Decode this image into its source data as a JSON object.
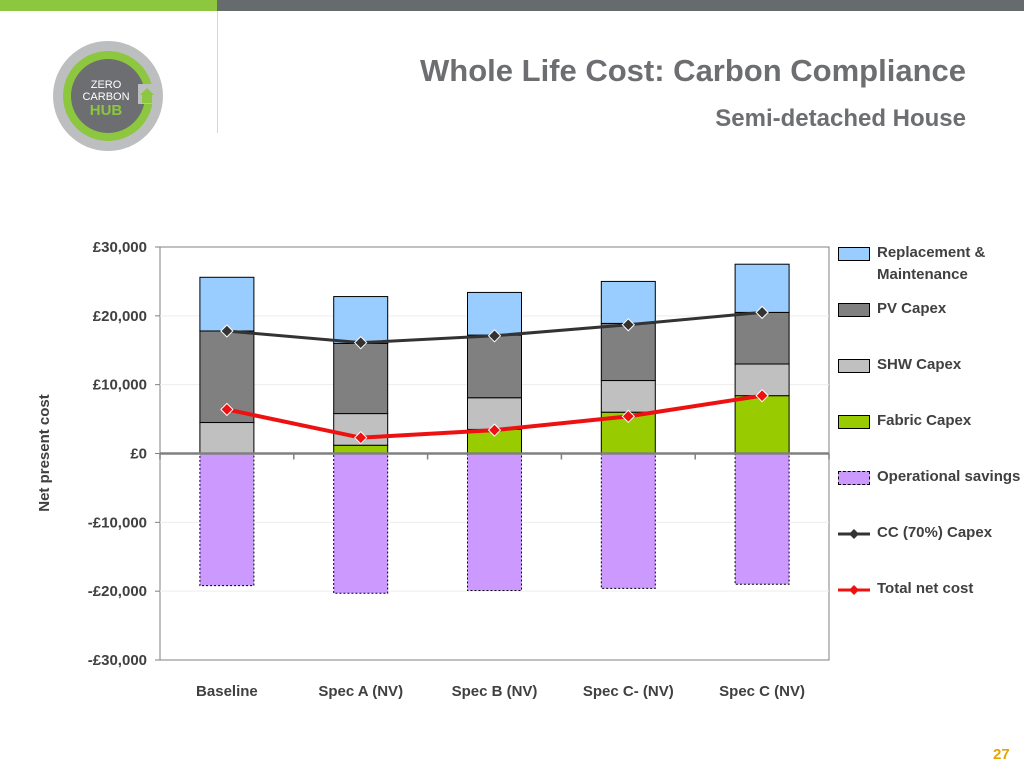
{
  "slide": {
    "title": "Whole Life Cost: Carbon Compliance",
    "subtitle": "Semi-detached House",
    "page_number": "27",
    "logo_text": [
      "ZERO",
      "CARBON",
      "HUB"
    ]
  },
  "colors": {
    "top_bar": "#666b6e",
    "top_bar_accent": "#8dc63f",
    "title": "#6d6e71",
    "replacement": "#99ccff",
    "pv": "#808080",
    "shw": "#c0c0c0",
    "fabric": "#99cc00",
    "operational": "#cc99ff",
    "cc_line": "#333333",
    "total_line": "#ee1111",
    "page_number": "#e6a400"
  },
  "chart_data": {
    "type": "bar",
    "stacked": true,
    "categories": [
      "Baseline",
      "Spec A (NV)",
      "Spec B (NV)",
      "Spec C- (NV)",
      "Spec C (NV)"
    ],
    "ylabel": "Net present cost",
    "xlabel": "",
    "ylim": [
      -30000,
      30000
    ],
    "yticks": [
      30000,
      20000,
      10000,
      0,
      -10000,
      -20000,
      -30000
    ],
    "ytick_labels": [
      "£30,000",
      "£20,000",
      "£10,000",
      "£0",
      "-£10,000",
      "-£20,000",
      "-£30,000"
    ],
    "grid": true,
    "legend_position": "right",
    "bar_series": [
      {
        "name": "Fabric Capex",
        "values": [
          0,
          1200,
          3500,
          6000,
          8400
        ],
        "color": "#99cc00"
      },
      {
        "name": "SHW Capex",
        "values": [
          4500,
          4600,
          4600,
          4600,
          4600
        ],
        "color": "#c0c0c0"
      },
      {
        "name": "PV Capex",
        "values": [
          13300,
          10200,
          9100,
          8300,
          7500
        ],
        "color": "#808080"
      },
      {
        "name": "Replacement & Maintenance",
        "values": [
          7800,
          6800,
          6200,
          6100,
          7000
        ],
        "color": "#99ccff"
      },
      {
        "name": "Operational savings",
        "values": [
          -19200,
          -20300,
          -19900,
          -19600,
          -19000
        ],
        "color": "#cc99ff"
      }
    ],
    "line_series": [
      {
        "name": "CC (70%) Capex",
        "values": [
          17800,
          16100,
          17100,
          18700,
          20500
        ],
        "color": "#333333",
        "marker": "diamond"
      },
      {
        "name": "Total net cost",
        "values": [
          6400,
          2300,
          3400,
          5400,
          8400
        ],
        "color": "#ee1111",
        "marker": "diamond"
      }
    ],
    "legend": [
      {
        "label": "Replacement & Maintenance",
        "kind": "bar",
        "color": "#99ccff"
      },
      {
        "label": "PV Capex",
        "kind": "bar",
        "color": "#808080"
      },
      {
        "label": "SHW Capex",
        "kind": "bar",
        "color": "#c0c0c0"
      },
      {
        "label": "Fabric Capex",
        "kind": "bar",
        "color": "#99cc00"
      },
      {
        "label": "Operational savings",
        "kind": "dashed-bar",
        "color": "#cc99ff"
      },
      {
        "label": "CC (70%) Capex",
        "kind": "line",
        "color": "#333333"
      },
      {
        "label": "Total net cost",
        "kind": "line",
        "color": "#ee1111"
      }
    ]
  }
}
